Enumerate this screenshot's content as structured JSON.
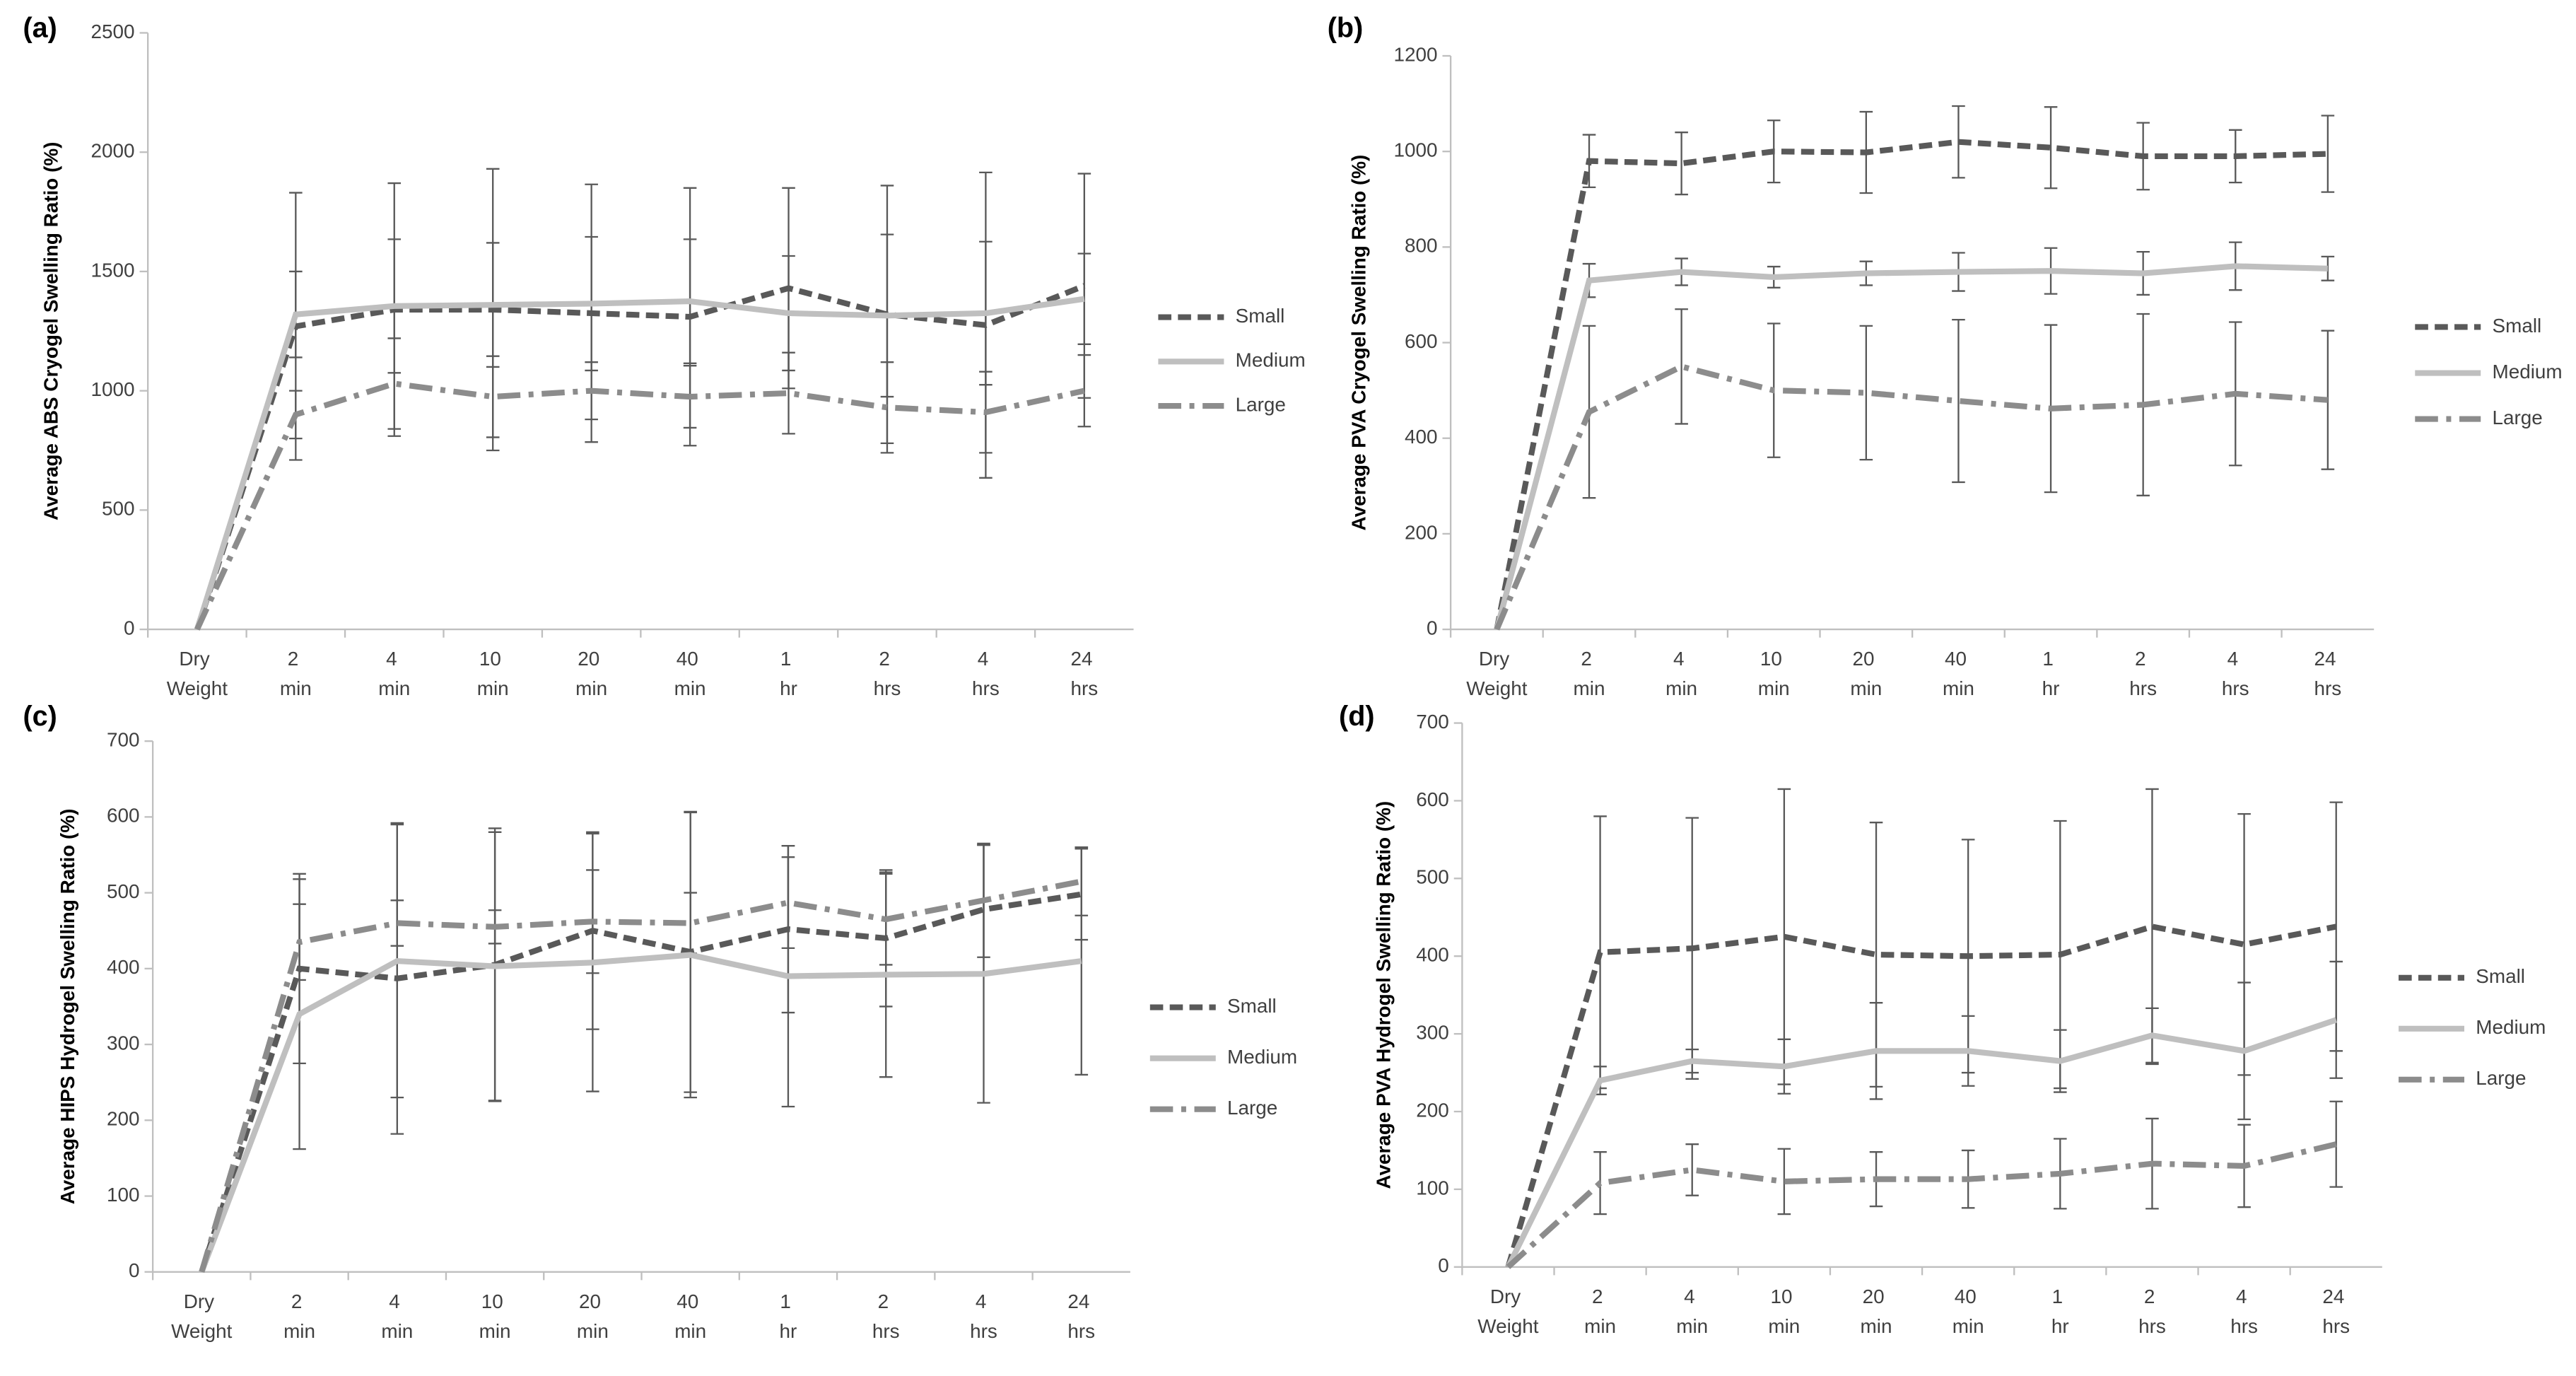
{
  "chart_data": [
    {
      "type": "line",
      "title": "(a)",
      "y_label": "Average ABS Cryogel Swelling Ratio (%)",
      "categories": [
        "Dry Weight",
        "2 min",
        "4 min",
        "10 min",
        "20 min",
        "40 min",
        "1 hr",
        "2 hrs",
        "4 hrs",
        "24 hrs"
      ],
      "ylim": [
        0,
        2500
      ],
      "yticks": [
        0,
        500,
        1000,
        1500,
        2000,
        2500
      ],
      "grid": false,
      "legend": "right",
      "series": [
        {
          "name": "Small",
          "color": "#595959",
          "values": [
            0,
            1270,
            1340,
            1340,
            1325,
            1310,
            1430,
            1320,
            1275,
            1440
          ],
          "errors": [
            null,
            560,
            530,
            590,
            540,
            540,
            420,
            540,
            640,
            470
          ]
        },
        {
          "name": "Medium",
          "color": "#bfbfbf",
          "values": [
            0,
            1320,
            1355,
            1360,
            1365,
            1375,
            1325,
            1315,
            1325,
            1385
          ],
          "errors": [
            null,
            180,
            280,
            260,
            280,
            260,
            240,
            340,
            300,
            190
          ]
        },
        {
          "name": "Large",
          "color": "#8c8c8c",
          "values": [
            0,
            900,
            1030,
            975,
            1000,
            975,
            990,
            930,
            910,
            1000
          ],
          "errors": [
            null,
            100,
            190,
            170,
            120,
            130,
            170,
            190,
            170,
            150
          ]
        }
      ]
    },
    {
      "type": "line",
      "title": "(b)",
      "y_label": "Average PVA Cryogel Swelling Ratio (%)",
      "categories": [
        "Dry Weight",
        "2 min",
        "4 min",
        "10 min",
        "20 min",
        "40 min",
        "1 hr",
        "2 hrs",
        "4 hrs",
        "24 hrs"
      ],
      "ylim": [
        0,
        1200
      ],
      "yticks": [
        0,
        200,
        400,
        600,
        800,
        1000,
        1200
      ],
      "grid": false,
      "legend": "right",
      "series": [
        {
          "name": "Small",
          "color": "#595959",
          "values": [
            0,
            980,
            975,
            1000,
            998,
            1020,
            1008,
            990,
            990,
            995
          ],
          "errors": [
            null,
            55,
            65,
            65,
            85,
            75,
            85,
            70,
            55,
            80
          ]
        },
        {
          "name": "Medium",
          "color": "#bfbfbf",
          "values": [
            0,
            730,
            748,
            737,
            745,
            748,
            750,
            745,
            760,
            755
          ],
          "errors": [
            null,
            35,
            28,
            22,
            25,
            40,
            48,
            45,
            50,
            25
          ]
        },
        {
          "name": "Large",
          "color": "#8c8c8c",
          "values": [
            0,
            455,
            550,
            500,
            495,
            478,
            462,
            470,
            493,
            480
          ],
          "errors": [
            null,
            180,
            120,
            140,
            140,
            170,
            175,
            190,
            150,
            145
          ]
        }
      ]
    },
    {
      "type": "line",
      "title": "(c)",
      "y_label": "Average HIPS Hydrogel Swelling Ratio (%)",
      "categories": [
        "Dry Weight",
        "2 min",
        "4 min",
        "10 min",
        "20 min",
        "40 min",
        "1 hr",
        "2 hrs",
        "4 hrs",
        "24 hrs"
      ],
      "ylim": [
        0,
        700
      ],
      "yticks": [
        0,
        100,
        200,
        300,
        400,
        500,
        600,
        700
      ],
      "grid": false,
      "legend": "right",
      "series": [
        {
          "name": "Small",
          "color": "#595959",
          "values": [
            0,
            400,
            387,
            405,
            450,
            422,
            452,
            440,
            478,
            498
          ],
          "errors": [
            null,
            125,
            205,
            180,
            130,
            185,
            110,
            90,
            85,
            60
          ]
        },
        {
          "name": "Medium",
          "color": "#bfbfbf",
          "values": [
            0,
            340,
            410,
            403,
            408,
            418,
            390,
            392,
            393,
            410
          ],
          "errors": [
            null,
            178,
            180,
            177,
            170,
            188,
            172,
            135,
            170,
            150
          ]
        },
        {
          "name": "Large",
          "color": "#8c8c8c",
          "values": [
            0,
            435,
            460,
            455,
            462,
            460,
            487,
            465,
            490,
            515
          ],
          "errors": [
            null,
            50,
            30,
            22,
            68,
            40,
            60,
            60,
            75,
            45
          ]
        }
      ]
    },
    {
      "type": "line",
      "title": "(d)",
      "y_label": "Average PVA Hydrogel Swelling Ratio (%)",
      "categories": [
        "Dry Weight",
        "2 min",
        "4 min",
        "10 min",
        "20 min",
        "40 min",
        "1 hr",
        "2 hrs",
        "4 hrs",
        "24 hrs"
      ],
      "ylim": [
        0,
        700
      ],
      "yticks": [
        0,
        100,
        200,
        300,
        400,
        500,
        600,
        700
      ],
      "grid": false,
      "legend": "right",
      "series": [
        {
          "name": "Small",
          "color": "#595959",
          "values": [
            0,
            405,
            410,
            425,
            402,
            400,
            402,
            438,
            415,
            438
          ],
          "errors": [
            null,
            175,
            168,
            190,
            170,
            150,
            172,
            177,
            168,
            160
          ]
        },
        {
          "name": "Medium",
          "color": "#bfbfbf",
          "values": [
            0,
            240,
            265,
            258,
            278,
            278,
            265,
            298,
            278,
            318
          ],
          "errors": [
            null,
            18,
            15,
            35,
            62,
            45,
            40,
            35,
            88,
            75
          ]
        },
        {
          "name": "Large",
          "color": "#8c8c8c",
          "values": [
            0,
            108,
            125,
            110,
            113,
            113,
            120,
            133,
            130,
            158
          ],
          "errors": [
            null,
            40,
            33,
            42,
            35,
            37,
            45,
            58,
            53,
            55
          ]
        }
      ]
    }
  ]
}
